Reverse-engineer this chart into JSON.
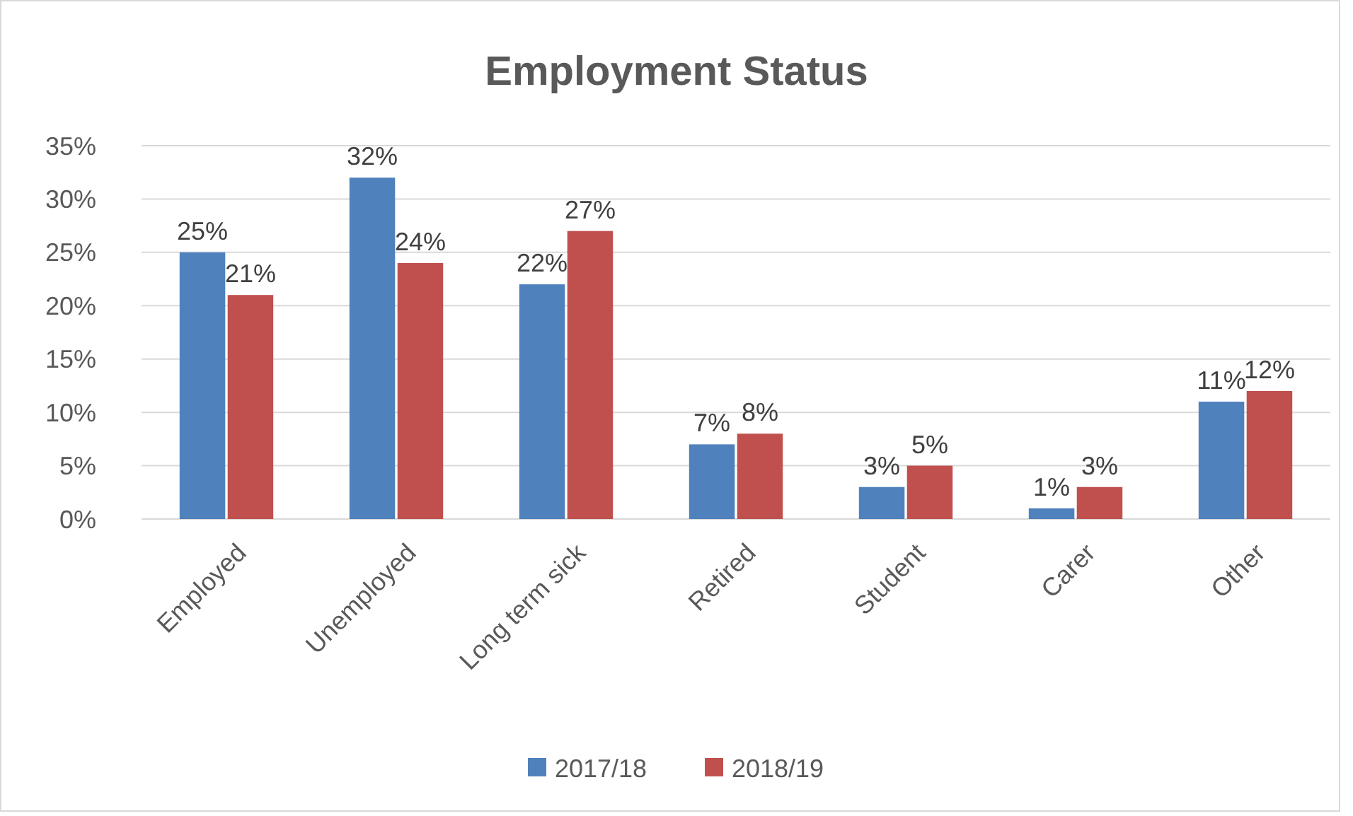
{
  "chart_data": {
    "type": "bar",
    "title": "Employment Status",
    "categories": [
      "Employed",
      "Unemployed",
      "Long term sick",
      "Retired",
      "Student",
      "Carer",
      "Other"
    ],
    "series": [
      {
        "name": "2017/18",
        "color": "#4f81bd",
        "values": [
          25,
          32,
          22,
          7,
          3,
          1,
          11
        ],
        "value_labels": [
          "25%",
          "32%",
          "22%",
          "7%",
          "3%",
          "1%",
          "11%"
        ]
      },
      {
        "name": "2018/19",
        "color": "#c0504d",
        "values": [
          21,
          24,
          27,
          8,
          5,
          3,
          12
        ],
        "value_labels": [
          "21%",
          "24%",
          "27%",
          "8%",
          "5%",
          "3%",
          "12%"
        ]
      }
    ],
    "ylim": [
      0,
      35
    ],
    "yticks": [
      {
        "value": 0,
        "label": "0%"
      },
      {
        "value": 5,
        "label": "5%"
      },
      {
        "value": 10,
        "label": "10%"
      },
      {
        "value": 15,
        "label": "15%"
      },
      {
        "value": 20,
        "label": "20%"
      },
      {
        "value": 25,
        "label": "25%"
      },
      {
        "value": 30,
        "label": "30%"
      },
      {
        "value": 35,
        "label": "35%"
      }
    ],
    "grid": "y",
    "legend": "bottom"
  }
}
